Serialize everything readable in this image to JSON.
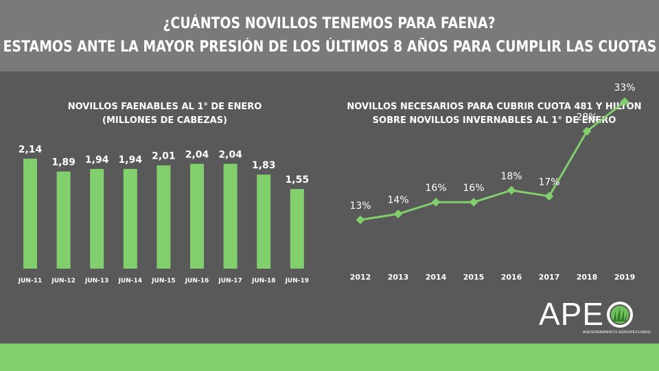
{
  "header": {
    "line1": "¿CUÁNTOS NOVILLOS TENEMOS PARA FAENA?",
    "line2": "ESTAMOS ANTE LA MAYOR PRESIÓN DE LOS ÚLTIMOS 8 AÑOS PARA CUMPLIR LAS CUOTAS"
  },
  "colors": {
    "background": "#595959",
    "header_band": "#7a7a7a",
    "green": "#82cf6e",
    "text": "#ffffff"
  },
  "logo": {
    "text": "APE",
    "subtitle": "ASESORAMIENTO AGROPECUARIO",
    "icon": "globe-grass-icon"
  },
  "chart_data": [
    {
      "type": "bar",
      "title": "NOVILLOS FAENABLES AL 1° DE  ENERO",
      "subtitle": "(MILLONES DE CABEZAS)",
      "categories": [
        "JUN-11",
        "JUN-12",
        "JUN-13",
        "JUN-14",
        "JUN-15",
        "JUN-16",
        "JUN-17",
        "JUN-18",
        "JUN-19"
      ],
      "values": [
        2.14,
        1.89,
        1.94,
        1.94,
        2.01,
        2.04,
        2.04,
        1.83,
        1.55
      ],
      "labels": [
        "2,14",
        "1,89",
        "1,94",
        "1,94",
        "2,01",
        "2,04",
        "2,04",
        "1,83",
        "1,55"
      ],
      "ylim": [
        0,
        2.3
      ],
      "color": "#82cf6e"
    },
    {
      "type": "line",
      "title": "NOVILLOS NECESARIOS PARA CUBRIR CUOTA 481 Y HILTON",
      "subtitle": "SOBRE NOVILLOS INVERNABLES AL 1° DE ENERO",
      "categories": [
        "2012",
        "2013",
        "2014",
        "2015",
        "2016",
        "2017",
        "2018",
        "2019"
      ],
      "values": [
        13,
        14,
        16,
        16,
        18,
        17,
        28,
        33
      ],
      "labels": [
        "13%",
        "14%",
        "16%",
        "16%",
        "18%",
        "17%",
        "28%",
        "33%"
      ],
      "ylim": [
        0,
        35
      ],
      "color": "#82cf6e"
    }
  ]
}
